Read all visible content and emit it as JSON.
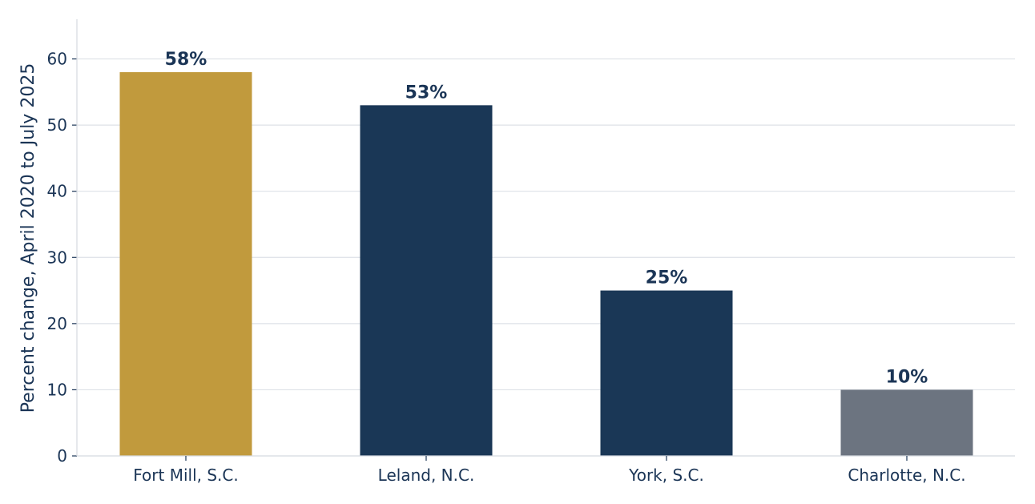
{
  "chart_data": {
    "type": "bar",
    "title": "",
    "xlabel": "",
    "ylabel": "Percent change, April 2020 to July 2025",
    "categories": [
      "Fort Mill, S.C.",
      "Leland, N.C.",
      "York, S.C.",
      "Charlotte, N.C."
    ],
    "values": [
      58,
      53,
      25,
      10
    ],
    "value_labels": [
      "58%",
      "53%",
      "25%",
      "10%"
    ],
    "bar_colors": [
      "#c19a3d",
      "#1a3756",
      "#1a3756",
      "#6c7480"
    ],
    "ylim": [
      0,
      66
    ],
    "yticks": [
      0,
      10,
      20,
      30,
      40,
      50,
      60
    ],
    "grid": true,
    "legend": "none"
  },
  "colors": {
    "text": "#1b3556",
    "grid": "#dde1e7"
  }
}
